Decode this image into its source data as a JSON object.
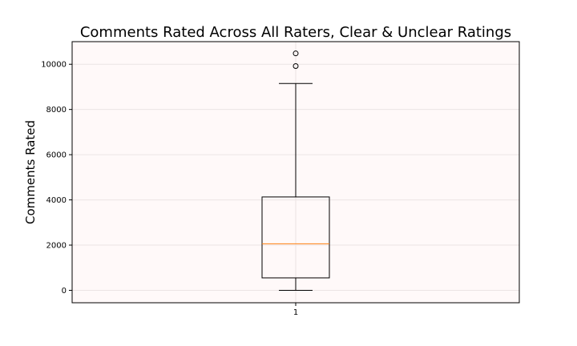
{
  "chart_data": {
    "type": "box",
    "title": "Comments Rated Across All Raters, Clear & Unclear Ratings",
    "xlabel": "",
    "ylabel": "Comments Rated",
    "categories": [
      "1"
    ],
    "ylim": [
      -550,
      11000
    ],
    "yticks": [
      0,
      2000,
      4000,
      6000,
      8000,
      10000
    ],
    "grid": true,
    "boxes": [
      {
        "category": "1",
        "whisker_low": 0,
        "q1": 550,
        "median": 2060,
        "q3": 4130,
        "whisker_high": 9150,
        "outliers": [
          9920,
          10480
        ]
      }
    ],
    "colors": {
      "plot_background": "#fff9f9",
      "box": "#000000",
      "median": "#ff7f0e",
      "grid": "#ebe4e4"
    }
  }
}
